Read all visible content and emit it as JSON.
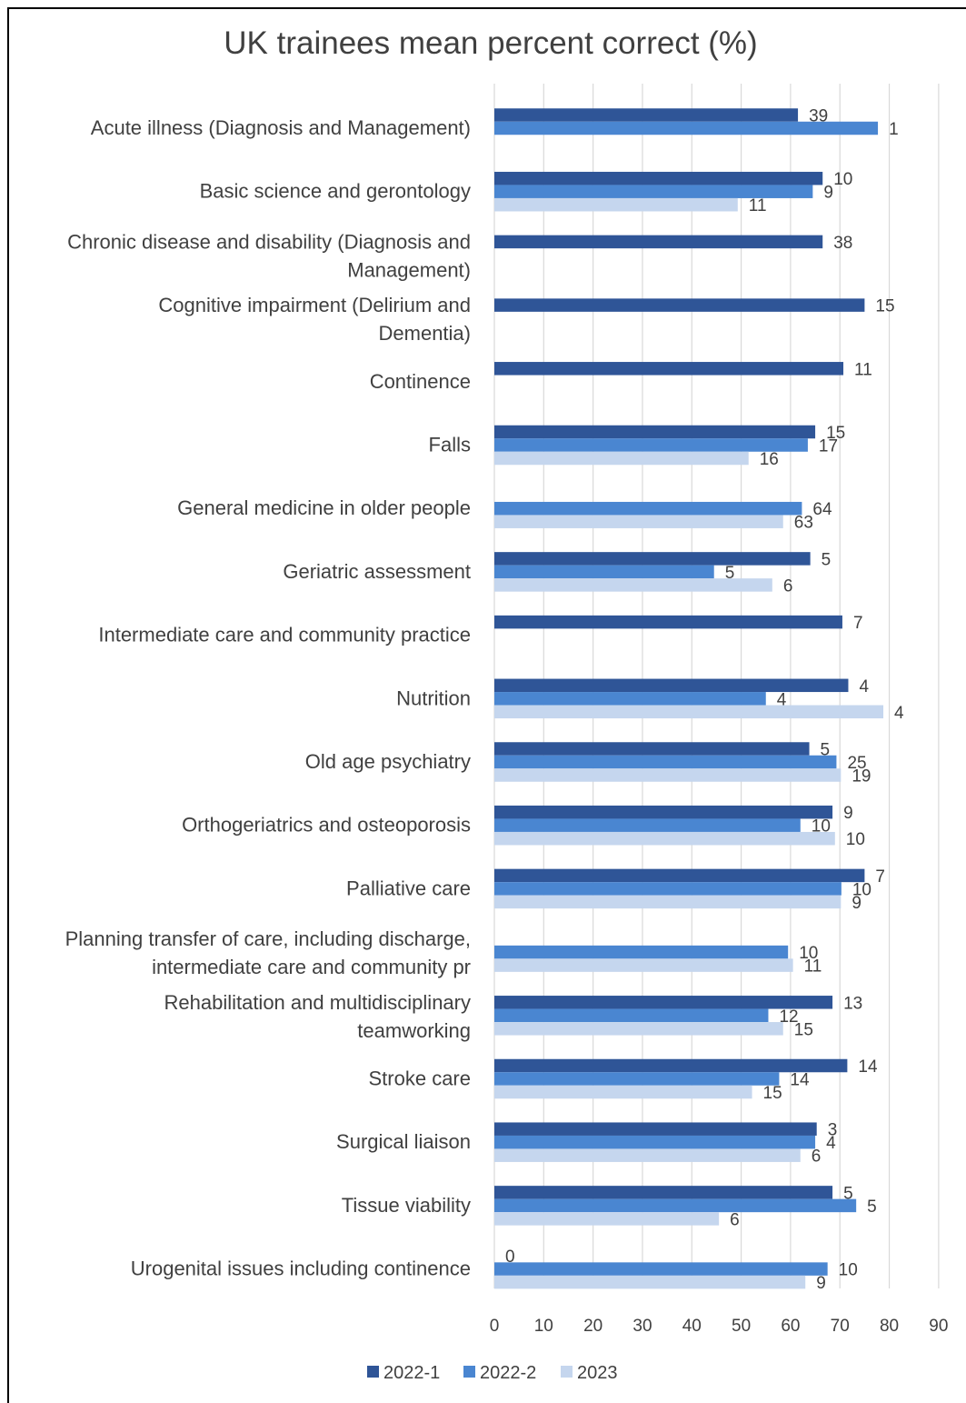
{
  "chart_data": {
    "type": "bar",
    "orientation": "horizontal",
    "title": "UK trainees mean percent correct (%)",
    "xlabel": "",
    "ylabel": "",
    "xlim": [
      0,
      90
    ],
    "x_ticks": [
      0,
      10,
      20,
      30,
      40,
      50,
      60,
      70,
      80,
      90
    ],
    "grid": "vertical",
    "legend_position": "bottom",
    "categories": [
      [
        "Acute illness (Diagnosis and Management)"
      ],
      [
        "Basic science and gerontology"
      ],
      [
        "Chronic disease and disability (Diagnosis and",
        "Management)"
      ],
      [
        "Cognitive impairment (Delirium and",
        "Dementia)"
      ],
      [
        "Continence"
      ],
      [
        "Falls"
      ],
      [
        "General medicine in older people"
      ],
      [
        "Geriatric assessment"
      ],
      [
        "Intermediate care and community practice"
      ],
      [
        "Nutrition"
      ],
      [
        "Old age psychiatry"
      ],
      [
        "Orthogeriatrics and osteoporosis"
      ],
      [
        "Palliative care"
      ],
      [
        "Planning transfer of care, including discharge,",
        "intermediate care and community pr"
      ],
      [
        "Rehabilitation and multidisciplinary",
        "teamworking"
      ],
      [
        "Stroke care"
      ],
      [
        "Surgical liaison"
      ],
      [
        "Tissue viability"
      ],
      [
        "Urogenital issues including continence"
      ]
    ],
    "series": [
      {
        "name": "2022-1",
        "color": "#2f5597",
        "values": [
          61.5,
          66.5,
          66.5,
          75,
          70.7,
          65,
          null,
          64,
          70.5,
          71.7,
          63.8,
          68.5,
          75,
          null,
          68.5,
          71.5,
          65.3,
          68.5,
          0
        ],
        "labels": [
          "39",
          "10",
          "38",
          "15",
          "11",
          "15",
          "",
          "5",
          "7",
          "4",
          "5",
          "9",
          "7",
          "",
          "13",
          "14",
          "3",
          "5",
          "0"
        ]
      },
      {
        "name": "2022-2",
        "color": "#4a86d1",
        "values": [
          77.7,
          64.5,
          null,
          null,
          null,
          63.5,
          62.3,
          44.5,
          null,
          55,
          69.3,
          62,
          70.3,
          59.5,
          55.5,
          57.7,
          65,
          73.3,
          67.5
        ],
        "labels": [
          "1",
          "9",
          "",
          "",
          "",
          "17",
          "64",
          "5",
          "",
          "4",
          "25",
          "10",
          "10",
          "10",
          "12",
          "14",
          "4",
          "5",
          "10"
        ]
      },
      {
        "name": "2023",
        "color": "#c5d6ee",
        "values": [
          null,
          49.3,
          null,
          null,
          null,
          51.5,
          58.5,
          56.3,
          null,
          78.8,
          70.2,
          69,
          70.2,
          60.5,
          58.5,
          52.2,
          62,
          45.5,
          63
        ],
        "labels": [
          "",
          "11",
          "",
          "",
          "",
          "16",
          "63",
          "6",
          "",
          "4",
          "19",
          "10",
          "9",
          "11",
          "15",
          "15",
          "6",
          "6",
          "9"
        ]
      }
    ]
  }
}
